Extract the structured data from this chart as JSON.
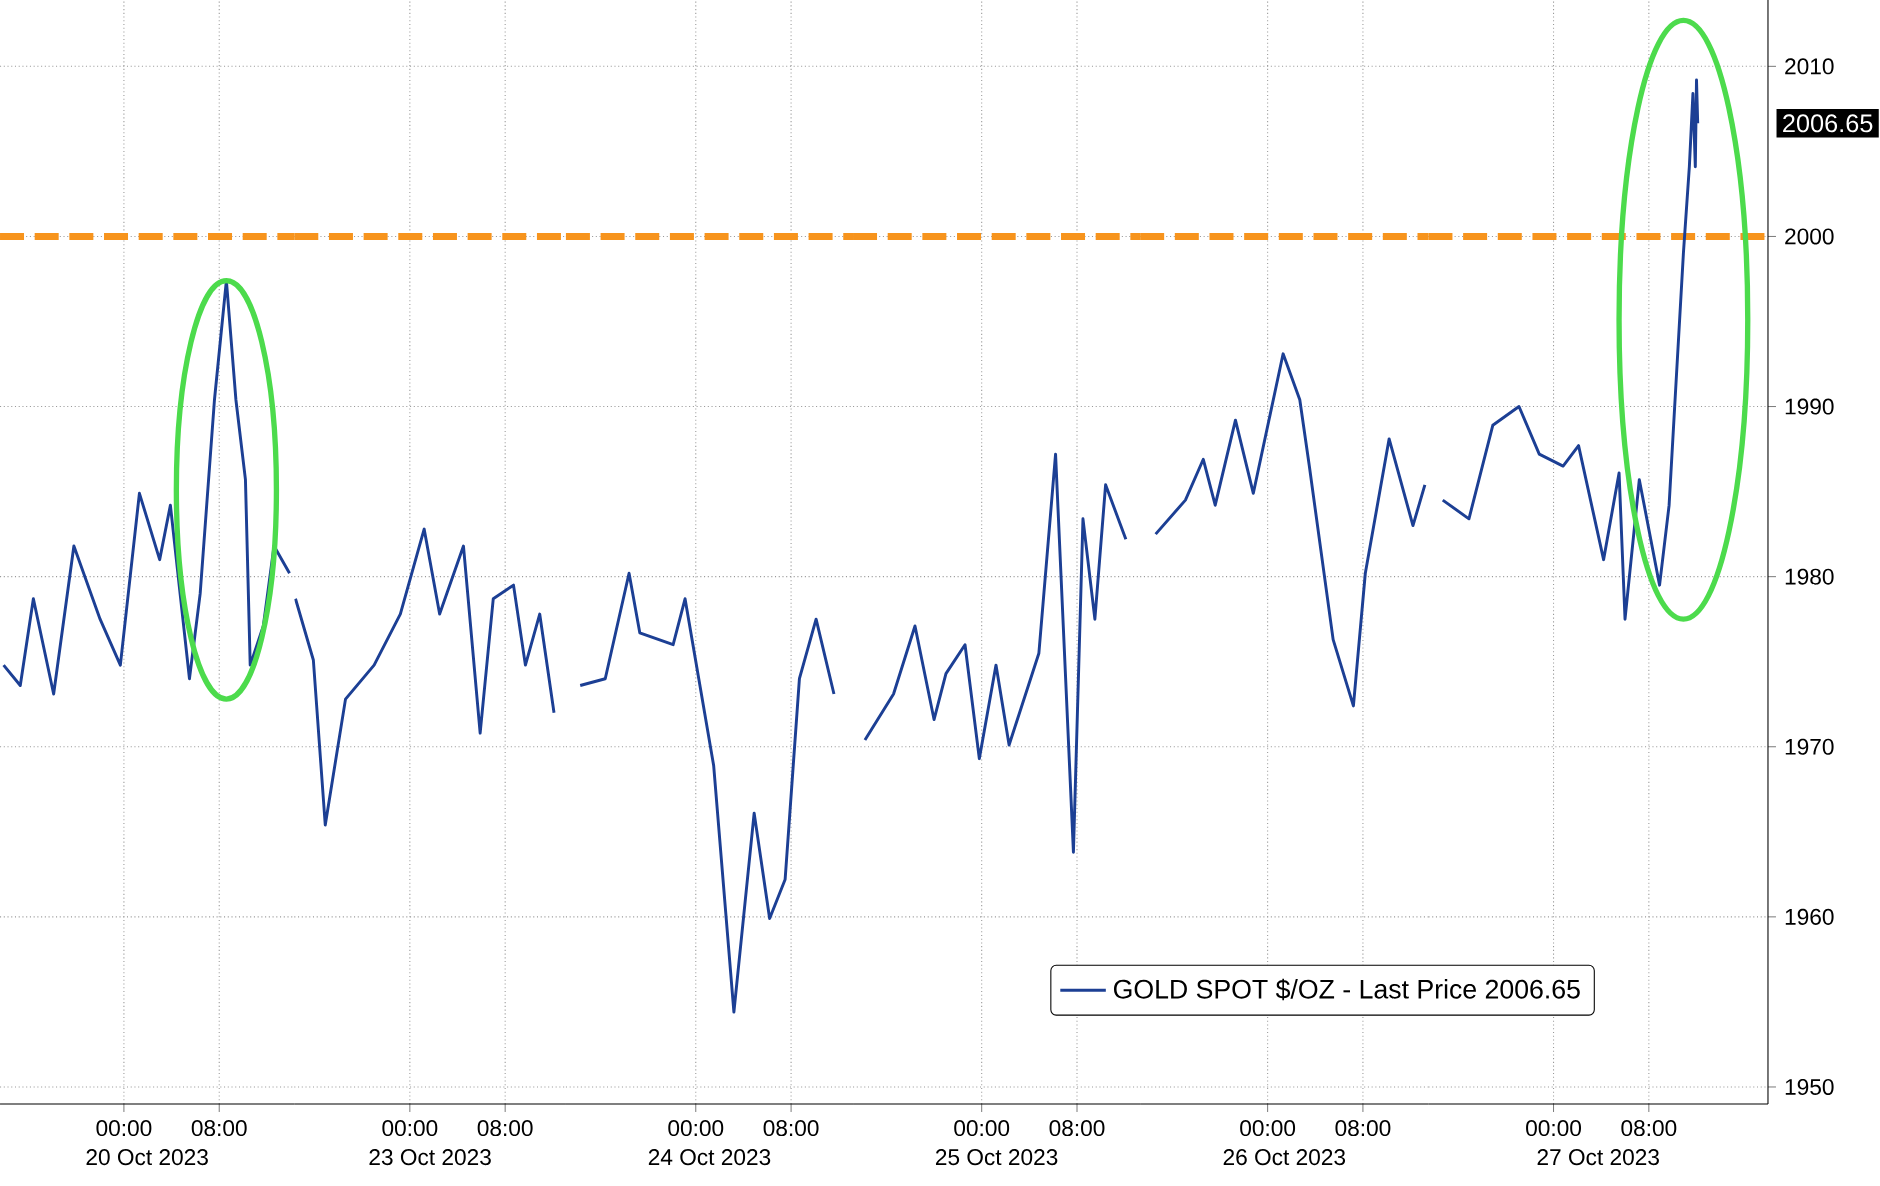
{
  "chart_data": [
    {
      "type": "line",
      "xlabel": "20 Oct 2023",
      "tick_labels": "x",
      "x": [
        "2023-10-19T13:54",
        "2023-10-19T15:18",
        "2023-10-19T16:24",
        "2023-10-19T18:06",
        "2023-10-19T19:48",
        "2023-10-19T22:00",
        "2023-10-19T23:42",
        "2023-10-20T01:18",
        "2023-10-20T03:00",
        "2023-10-20T03:54",
        "2023-10-20T05:30",
        "2023-10-20T06:24",
        "2023-10-20T07:36",
        "2023-10-20T08:36",
        "2023-10-20T09:24",
        "2023-10-20T10:12",
        "2023-10-20T10:36",
        "2023-10-20T11:42",
        "2023-10-20T12:36",
        "2023-10-20T13:54"
      ],
      "series": [
        {
          "color": "#1c3f94",
          "values": [
            1974.8,
            1973.6,
            1978.7,
            1973.1,
            1981.8,
            1977.5,
            1974.8,
            1984.9,
            1981.0,
            1984.2,
            1974.0,
            1979.0,
            1990.4,
            1997.4,
            1990.4,
            1985.7,
            1974.8,
            1977.1,
            1981.8,
            1980.2
          ]
        }
      ],
      "xlim": [
        "2023-10-19T13:36",
        "2023-10-20T14:18"
      ],
      "ylim": [
        1949,
        2013.9
      ],
      "xticks": [
        {
          "value": "2023-10-20T00:00",
          "label": "00:00"
        },
        {
          "value": "2023-10-20T08:00",
          "label": "08:00"
        }
      ],
      "yticks": [
        1950,
        1960,
        1970,
        1980,
        1990,
        2000,
        2010
      ],
      "grid": true,
      "ref_lines": [
        {
          "axis": "y",
          "value": 2000,
          "color": "#f7941d",
          "line_style": "dashed"
        }
      ]
    },
    {
      "type": "line",
      "xlabel": "23 Oct 2023",
      "tick_labels": "x",
      "x": [
        "2023-10-22T14:24",
        "2023-10-22T15:54",
        "2023-10-22T16:54",
        "2023-10-22T18:36",
        "2023-10-22T21:00",
        "2023-10-22T23:12",
        "2023-10-23T01:12",
        "2023-10-23T02:30",
        "2023-10-23T04:30",
        "2023-10-23T05:54",
        "2023-10-23T07:00",
        "2023-10-23T08:42",
        "2023-10-23T09:42",
        "2023-10-23T10:54",
        "2023-10-23T12:06"
      ],
      "series": [
        {
          "color": "#1c3f94",
          "values": [
            1978.7,
            1975.1,
            1965.4,
            1972.8,
            1974.8,
            1977.8,
            1982.8,
            1977.8,
            1981.8,
            1970.8,
            1978.7,
            1979.5,
            1974.8,
            1977.8,
            1972.0
          ]
        }
      ],
      "xlim": [
        "2023-10-22T14:18",
        "2023-10-23T13:06"
      ],
      "ylim": [
        1949,
        2013.9
      ],
      "xticks": [
        {
          "value": "2023-10-23T00:00",
          "label": "00:00"
        },
        {
          "value": "2023-10-23T08:00",
          "label": "08:00"
        }
      ],
      "yticks": [
        1950,
        1960,
        1970,
        1980,
        1990,
        2000,
        2010
      ],
      "grid": true,
      "ref_lines": [
        {
          "axis": "y",
          "value": 2000,
          "color": "#f7941d",
          "line_style": "dashed"
        }
      ]
    },
    {
      "type": "line",
      "xlabel": "24 Oct 2023",
      "tick_labels": "x",
      "x": [
        "2023-10-23T14:18",
        "2023-10-23T16:24",
        "2023-10-23T18:24",
        "2023-10-23T19:18",
        "2023-10-23T22:06",
        "2023-10-23T23:06",
        "2023-10-24T01:30",
        "2023-10-24T03:12",
        "2023-10-24T04:54",
        "2023-10-24T06:12",
        "2023-10-24T07:30",
        "2023-10-24T08:42",
        "2023-10-24T10:06",
        "2023-10-24T11:36"
      ],
      "series": [
        {
          "color": "#1c3f94",
          "values": [
            1973.6,
            1974.0,
            1980.2,
            1976.7,
            1976.0,
            1978.7,
            1968.9,
            1954.4,
            1966.1,
            1959.9,
            1962.2,
            1974.0,
            1977.5,
            1973.1
          ]
        }
      ],
      "xlim": [
        "2023-10-23T13:06",
        "2023-10-24T13:12"
      ],
      "ylim": [
        1949,
        2013.9
      ],
      "xticks": [
        {
          "value": "2023-10-24T00:00",
          "label": "00:00"
        },
        {
          "value": "2023-10-24T08:00",
          "label": "08:00"
        }
      ],
      "yticks": [
        1950,
        1960,
        1970,
        1980,
        1990,
        2000,
        2010
      ],
      "grid": true,
      "ref_lines": [
        {
          "axis": "y",
          "value": 2000,
          "color": "#f7941d",
          "line_style": "dashed"
        }
      ]
    },
    {
      "type": "line",
      "xlabel": "25 Oct 2023",
      "tick_labels": "x",
      "x": [
        "2023-10-24T14:12",
        "2023-10-24T16:36",
        "2023-10-24T18:24",
        "2023-10-24T20:00",
        "2023-10-24T21:00",
        "2023-10-24T22:36",
        "2023-10-24T23:48",
        "2023-10-25T01:12",
        "2023-10-25T02:18",
        "2023-10-25T04:48",
        "2023-10-25T06:12",
        "2023-10-25T07:42",
        "2023-10-25T08:30",
        "2023-10-25T09:30",
        "2023-10-25T10:24",
        "2023-10-25T12:06"
      ],
      "series": [
        {
          "color": "#1c3f94",
          "values": [
            1970.4,
            1973.1,
            1977.1,
            1971.6,
            1974.3,
            1976.0,
            1969.3,
            1974.8,
            1970.1,
            1975.5,
            1987.2,
            1963.8,
            1983.4,
            1977.5,
            1985.4,
            1982.2
          ]
        }
      ],
      "xlim": [
        "2023-10-24T13:12",
        "2023-10-25T13:18"
      ],
      "ylim": [
        1949,
        2013.9
      ],
      "xticks": [
        {
          "value": "2023-10-25T00:00",
          "label": "00:00"
        },
        {
          "value": "2023-10-25T08:00",
          "label": "08:00"
        }
      ],
      "yticks": [
        1950,
        1960,
        1970,
        1980,
        1990,
        2000,
        2010
      ],
      "grid": true,
      "ref_lines": [
        {
          "axis": "y",
          "value": 2000,
          "color": "#f7941d",
          "line_style": "dashed"
        }
      ]
    },
    {
      "type": "line",
      "xlabel": "26 Oct 2023",
      "tick_labels": "x",
      "x": [
        "2023-10-25T14:36",
        "2023-10-25T17:06",
        "2023-10-25T18:36",
        "2023-10-25T19:36",
        "2023-10-25T21:18",
        "2023-10-25T22:48",
        "2023-10-26T01:18",
        "2023-10-26T02:42",
        "2023-10-26T03:30",
        "2023-10-26T05:30",
        "2023-10-26T07:12",
        "2023-10-26T08:12",
        "2023-10-26T10:12",
        "2023-10-26T12:12",
        "2023-10-26T13:12"
      ],
      "series": [
        {
          "color": "#1c3f94",
          "values": [
            1982.5,
            1984.5,
            1986.9,
            1984.2,
            1989.2,
            1984.9,
            1993.1,
            1990.4,
            1986.5,
            1976.3,
            1972.4,
            1980.2,
            1988.1,
            1983.0,
            1985.4
          ]
        }
      ],
      "xlim": [
        "2023-10-25T13:18",
        "2023-10-26T13:30"
      ],
      "ylim": [
        1949,
        2013.9
      ],
      "xticks": [
        {
          "value": "2023-10-26T00:00",
          "label": "00:00"
        },
        {
          "value": "2023-10-26T08:00",
          "label": "08:00"
        }
      ],
      "yticks": [
        1950,
        1960,
        1970,
        1980,
        1990,
        2000,
        2010
      ],
      "grid": true,
      "ref_lines": [
        {
          "axis": "y",
          "value": 2000,
          "color": "#f7941d",
          "line_style": "dashed"
        }
      ]
    },
    {
      "type": "line",
      "xlabel": "27 Oct 2023",
      "x": [
        "2023-10-26T14:42",
        "2023-10-26T16:54",
        "2023-10-26T18:54",
        "2023-10-26T21:06",
        "2023-10-26T22:48",
        "2023-10-27T00:48",
        "2023-10-27T02:06",
        "2023-10-27T04:12",
        "2023-10-27T05:30",
        "2023-10-27T06:00",
        "2023-10-27T07:12",
        "2023-10-27T08:54",
        "2023-10-27T09:42",
        "2023-10-27T10:12",
        "2023-10-27T10:54",
        "2023-10-27T11:24",
        "2023-10-27T11:42",
        "2023-10-27T11:54",
        "2023-10-27T12:00",
        "2023-10-27T12:06"
      ],
      "series": [
        {
          "name": "GOLD SPOT $/OZ - Last Price 2006.65",
          "color": "#1c3f94",
          "values": [
            1984.5,
            1983.4,
            1988.9,
            1990.0,
            1987.2,
            1986.5,
            1987.7,
            1981.0,
            1986.1,
            1977.5,
            1985.7,
            1979.5,
            1984.2,
            1990.4,
            1999.0,
            2004.1,
            2008.4,
            2004.1,
            2009.2,
            2006.65
          ]
        }
      ],
      "xlim": [
        "2023-10-26T13:30",
        "2023-10-27T18:00"
      ],
      "ylim": [
        1949,
        2013.9
      ],
      "xticks": [
        {
          "value": "2023-10-27T00:00",
          "label": "00:00"
        },
        {
          "value": "2023-10-27T08:00",
          "label": "08:00"
        }
      ],
      "yticks": [
        1950,
        1960,
        1970,
        1980,
        1990,
        2000,
        2010
      ],
      "grid": true,
      "legend": "bottom left",
      "ref_lines": [
        {
          "axis": "y",
          "value": 2000,
          "color": "#f7941d",
          "line_style": "dashed"
        }
      ],
      "annotations": [
        "2006.65"
      ]
    }
  ]
}
